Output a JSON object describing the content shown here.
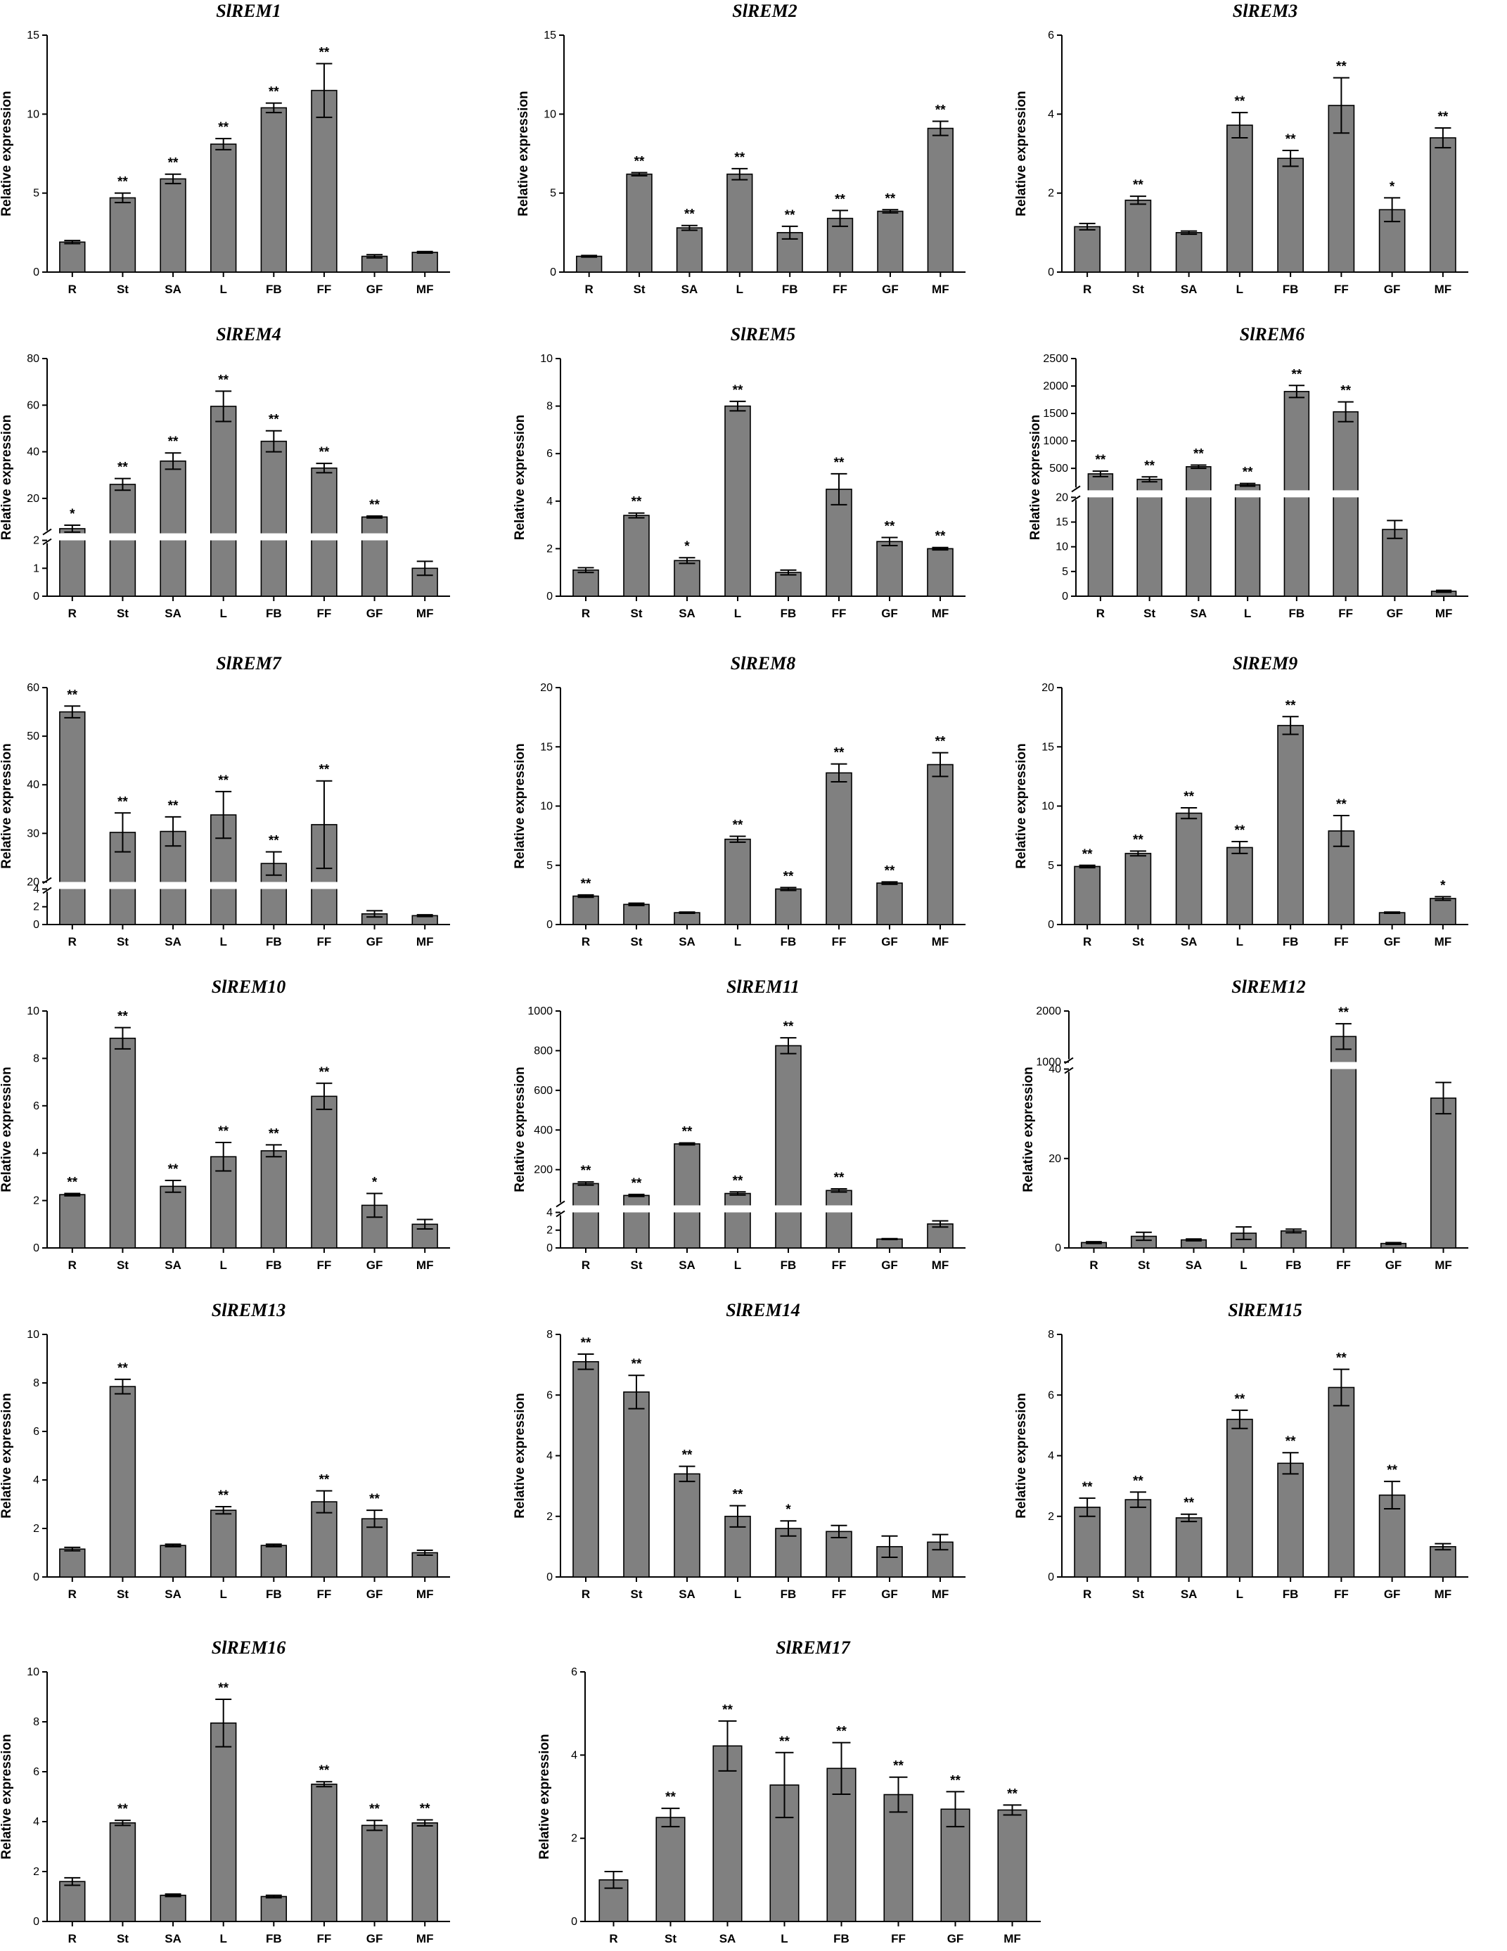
{
  "chart_data": [
    {
      "type": "bar",
      "title": "SlREM1",
      "ylabel": "Relative expression",
      "categories": [
        "R",
        "St",
        "SA",
        "L",
        "FB",
        "FF",
        "GF",
        "MF"
      ],
      "values": [
        1.9,
        4.7,
        5.9,
        8.1,
        10.4,
        11.5,
        1.0,
        1.25
      ],
      "errors": [
        0.1,
        0.3,
        0.3,
        0.35,
        0.3,
        1.7,
        0.1,
        0.05
      ],
      "significance": [
        "",
        "**",
        "**",
        "**",
        "**",
        "**",
        "",
        ""
      ],
      "ylim": [
        0,
        15
      ],
      "yticks": [
        0,
        5,
        10,
        15
      ]
    },
    {
      "type": "bar",
      "title": "SlREM2",
      "ylabel": "Relative expression",
      "categories": [
        "R",
        "St",
        "SA",
        "L",
        "FB",
        "FF",
        "GF",
        "MF"
      ],
      "values": [
        1.0,
        6.2,
        2.8,
        6.2,
        2.5,
        3.4,
        3.85,
        9.1
      ],
      "errors": [
        0.05,
        0.1,
        0.15,
        0.35,
        0.4,
        0.5,
        0.1,
        0.45
      ],
      "significance": [
        "",
        "**",
        "**",
        "**",
        "**",
        "**",
        "**",
        "**"
      ],
      "ylim": [
        0,
        15
      ],
      "yticks": [
        0,
        5,
        10,
        15
      ]
    },
    {
      "type": "bar",
      "title": "SlREM3",
      "ylabel": "Relative expression",
      "categories": [
        "R",
        "St",
        "SA",
        "L",
        "FB",
        "FF",
        "GF",
        "MF"
      ],
      "values": [
        1.15,
        1.82,
        1.0,
        3.72,
        2.88,
        4.22,
        1.58,
        3.4
      ],
      "errors": [
        0.08,
        0.1,
        0.04,
        0.32,
        0.2,
        0.7,
        0.3,
        0.25
      ],
      "significance": [
        "",
        "**",
        "",
        "**",
        "**",
        "**",
        "*",
        "**"
      ],
      "ylim": [
        0,
        6
      ],
      "yticks": [
        0,
        2,
        4,
        6
      ]
    },
    {
      "type": "bar",
      "title": "SlREM4",
      "ylabel": "Relative expression",
      "categories": [
        "R",
        "St",
        "SA",
        "L",
        "FB",
        "FF",
        "GF",
        "MF"
      ],
      "values": [
        7.0,
        26.0,
        36.0,
        59.5,
        44.5,
        33.0,
        12.0,
        1.0
      ],
      "errors": [
        1.5,
        2.5,
        3.5,
        6.5,
        4.5,
        2.0,
        0.4,
        0.25
      ],
      "significance": [
        "*",
        "**",
        "**",
        "**",
        "**",
        "**",
        "**",
        ""
      ],
      "ybreak": [
        2,
        5
      ],
      "yticks": [
        0,
        1,
        2,
        20,
        40,
        60,
        80
      ]
    },
    {
      "type": "bar",
      "title": "SlREM5",
      "ylabel": "Relative expression",
      "categories": [
        "R",
        "St",
        "SA",
        "L",
        "FB",
        "FF",
        "GF",
        "MF"
      ],
      "values": [
        1.1,
        3.4,
        1.5,
        8.0,
        1.0,
        4.5,
        2.3,
        2.0
      ],
      "errors": [
        0.1,
        0.1,
        0.12,
        0.2,
        0.1,
        0.65,
        0.17,
        0.05
      ],
      "significance": [
        "",
        "**",
        "*",
        "**",
        "",
        "**",
        "**",
        "**"
      ],
      "ylim": [
        0,
        10
      ],
      "yticks": [
        0,
        2,
        4,
        6,
        8,
        10
      ]
    },
    {
      "type": "bar",
      "title": "SlREM6",
      "ylabel": "Relative expression",
      "categories": [
        "R",
        "St",
        "SA",
        "L",
        "FB",
        "FF",
        "GF",
        "MF"
      ],
      "values": [
        400,
        300,
        530,
        200,
        1900,
        1530,
        13.5,
        1.0
      ],
      "errors": [
        50,
        45,
        30,
        25,
        110,
        180,
        1.8,
        0.2
      ],
      "significance": [
        "**",
        "**",
        "**",
        "**",
        "**",
        "**",
        "",
        ""
      ],
      "ybreak": [
        20,
        100
      ],
      "yticks": [
        0,
        5,
        10,
        15,
        20,
        500,
        1000,
        1500,
        2000,
        2500
      ]
    },
    {
      "type": "bar",
      "title": "SlREM7",
      "ylabel": "Relative expression",
      "categories": [
        "R",
        "St",
        "SA",
        "L",
        "FB",
        "FF",
        "GF",
        "MF"
      ],
      "values": [
        55.0,
        30.2,
        30.4,
        33.8,
        23.8,
        31.8,
        1.2,
        1.0
      ],
      "errors": [
        1.2,
        4.0,
        3.0,
        4.8,
        2.4,
        9.0,
        0.35,
        0.1
      ],
      "significance": [
        "**",
        "**",
        "**",
        "**",
        "**",
        "**",
        "",
        ""
      ],
      "ybreak": [
        4,
        20
      ],
      "yticks": [
        0,
        2,
        4,
        20,
        30,
        40,
        50,
        60
      ]
    },
    {
      "type": "bar",
      "title": "SlREM8",
      "ylabel": "Relative expression",
      "categories": [
        "R",
        "St",
        "SA",
        "L",
        "FB",
        "FF",
        "GF",
        "MF"
      ],
      "values": [
        2.4,
        1.7,
        1.0,
        7.2,
        3.0,
        12.8,
        3.5,
        13.5
      ],
      "errors": [
        0.1,
        0.1,
        0.05,
        0.25,
        0.12,
        0.75,
        0.1,
        1.0
      ],
      "significance": [
        "**",
        "",
        "",
        "**",
        "**",
        "**",
        "**",
        "**"
      ],
      "ylim": [
        0,
        20
      ],
      "yticks": [
        0,
        5,
        10,
        15,
        20
      ]
    },
    {
      "type": "bar",
      "title": "SlREM9",
      "ylabel": "Relative expression",
      "categories": [
        "R",
        "St",
        "SA",
        "L",
        "FB",
        "FF",
        "GF",
        "MF"
      ],
      "values": [
        4.9,
        6.0,
        9.4,
        6.5,
        16.8,
        7.9,
        1.0,
        2.2
      ],
      "errors": [
        0.1,
        0.2,
        0.45,
        0.5,
        0.75,
        1.3,
        0.05,
        0.15
      ],
      "significance": [
        "**",
        "**",
        "**",
        "**",
        "**",
        "**",
        "",
        "*"
      ],
      "ylim": [
        0,
        20
      ],
      "yticks": [
        0,
        5,
        10,
        15,
        20
      ]
    },
    {
      "type": "bar",
      "title": "SlREM10",
      "ylabel": "Relative expression",
      "categories": [
        "R",
        "St",
        "SA",
        "L",
        "FB",
        "FF",
        "GF",
        "MF"
      ],
      "values": [
        2.25,
        8.85,
        2.6,
        3.85,
        4.1,
        6.4,
        1.8,
        1.0
      ],
      "errors": [
        0.05,
        0.45,
        0.25,
        0.6,
        0.25,
        0.55,
        0.5,
        0.2
      ],
      "significance": [
        "**",
        "**",
        "**",
        "**",
        "**",
        "**",
        "*",
        ""
      ],
      "ylim": [
        0,
        10
      ],
      "yticks": [
        0,
        2,
        4,
        6,
        8,
        10
      ]
    },
    {
      "type": "bar",
      "title": "SlREM11",
      "ylabel": "Relative expression",
      "categories": [
        "R",
        "St",
        "SA",
        "L",
        "FB",
        "FF",
        "GF",
        "MF"
      ],
      "values": [
        130,
        70,
        330,
        80,
        825,
        95,
        1.0,
        2.7
      ],
      "errors": [
        8,
        5,
        5,
        8,
        40,
        8,
        0.05,
        0.35
      ],
      "significance": [
        "**",
        "**",
        "**",
        "**",
        "**",
        "**",
        "",
        ""
      ],
      "ybreak": [
        4,
        20
      ],
      "yticks": [
        0,
        2,
        4,
        200,
        400,
        600,
        800,
        1000
      ]
    },
    {
      "type": "bar",
      "title": "SlREM12",
      "ylabel": "Relative expression",
      "categories": [
        "R",
        "St",
        "SA",
        "L",
        "FB",
        "FF",
        "GF",
        "MF"
      ],
      "values": [
        1.2,
        2.6,
        1.8,
        3.3,
        3.8,
        1500,
        1.0,
        33.5
      ],
      "errors": [
        0.2,
        0.9,
        0.2,
        1.4,
        0.4,
        250,
        0.2,
        3.5
      ],
      "significance": [
        "",
        "",
        "",
        "",
        "",
        "**",
        "",
        ""
      ],
      "ybreak": [
        40,
        1000
      ],
      "yticks": [
        0,
        20,
        40,
        1000,
        2000
      ]
    },
    {
      "type": "bar",
      "title": "SlREM13",
      "ylabel": "Relative expression",
      "categories": [
        "R",
        "St",
        "SA",
        "L",
        "FB",
        "FF",
        "GF",
        "MF"
      ],
      "values": [
        1.15,
        7.85,
        1.3,
        2.75,
        1.3,
        3.1,
        2.4,
        1.0
      ],
      "errors": [
        0.07,
        0.3,
        0.05,
        0.15,
        0.05,
        0.45,
        0.35,
        0.1
      ],
      "significance": [
        "",
        "**",
        "",
        "**",
        "",
        "**",
        "**",
        ""
      ],
      "ylim": [
        0,
        10
      ],
      "yticks": [
        0,
        2,
        4,
        6,
        8,
        10
      ]
    },
    {
      "type": "bar",
      "title": "SlREM14",
      "ylabel": "Relative expression",
      "categories": [
        "R",
        "St",
        "SA",
        "L",
        "FB",
        "FF",
        "GF",
        "MF"
      ],
      "values": [
        7.1,
        6.1,
        3.4,
        2.0,
        1.6,
        1.5,
        1.0,
        1.15
      ],
      "errors": [
        0.25,
        0.55,
        0.25,
        0.35,
        0.25,
        0.2,
        0.35,
        0.25
      ],
      "significance": [
        "**",
        "**",
        "**",
        "**",
        "*",
        "",
        "",
        ""
      ],
      "ylim": [
        0,
        8
      ],
      "yticks": [
        0,
        2,
        4,
        6,
        8
      ]
    },
    {
      "type": "bar",
      "title": "SlREM15",
      "ylabel": "Relative expression",
      "categories": [
        "R",
        "St",
        "SA",
        "L",
        "FB",
        "FF",
        "GF",
        "MF"
      ],
      "values": [
        2.3,
        2.55,
        1.95,
        5.2,
        3.75,
        6.25,
        2.7,
        1.0
      ],
      "errors": [
        0.3,
        0.25,
        0.12,
        0.3,
        0.35,
        0.6,
        0.45,
        0.1
      ],
      "significance": [
        "**",
        "**",
        "**",
        "**",
        "**",
        "**",
        "**",
        ""
      ],
      "ylim": [
        0,
        8
      ],
      "yticks": [
        0,
        2,
        4,
        6,
        8
      ]
    },
    {
      "type": "bar",
      "title": "SlREM16",
      "ylabel": "Relative expression",
      "categories": [
        "R",
        "St",
        "SA",
        "L",
        "FB",
        "FF",
        "GF",
        "MF"
      ],
      "values": [
        1.6,
        3.95,
        1.05,
        7.95,
        1.0,
        5.5,
        3.85,
        3.95
      ],
      "errors": [
        0.15,
        0.1,
        0.05,
        0.95,
        0.05,
        0.1,
        0.2,
        0.12
      ],
      "significance": [
        "",
        "**",
        "",
        "**",
        "",
        "**",
        "**",
        "**"
      ],
      "ylim": [
        0,
        10
      ],
      "yticks": [
        0,
        2,
        4,
        6,
        8,
        10
      ]
    },
    {
      "type": "bar",
      "title": "SlREM17",
      "ylabel": "Relative expression",
      "categories": [
        "R",
        "St",
        "SA",
        "L",
        "FB",
        "FF",
        "GF",
        "MF"
      ],
      "values": [
        1.0,
        2.5,
        4.22,
        3.28,
        3.68,
        3.05,
        2.7,
        2.68
      ],
      "errors": [
        0.2,
        0.22,
        0.6,
        0.78,
        0.62,
        0.42,
        0.42,
        0.12
      ],
      "significance": [
        "",
        "**",
        "**",
        "**",
        "**",
        "**",
        "**",
        "**"
      ],
      "ylim": [
        0,
        6
      ],
      "yticks": [
        0,
        2,
        4,
        6
      ]
    }
  ]
}
